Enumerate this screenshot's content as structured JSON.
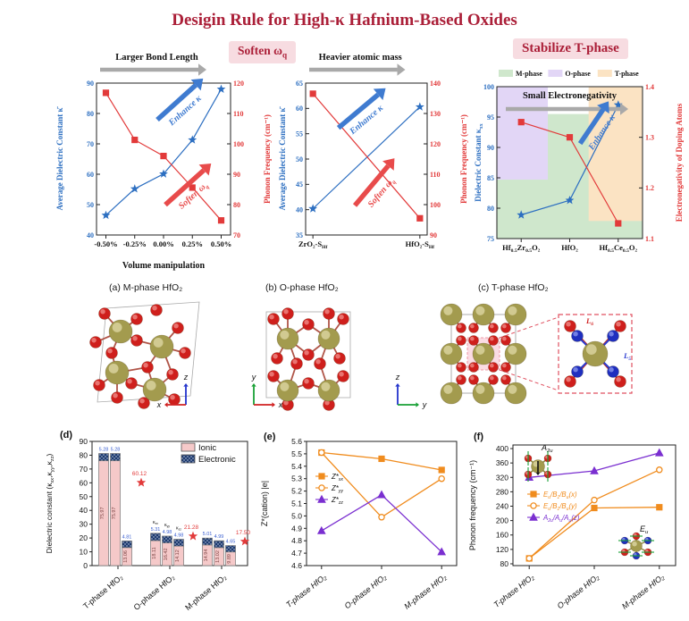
{
  "title": "Desigin Rule for High-κ Hafnium-Based Oxides",
  "badges": {
    "soften": "Soften ω{q}",
    "stabilize": "Stabilize T-phase"
  },
  "structures": {
    "a": {
      "caption": "(a) M-phase HfO₂",
      "axis_up": "z",
      "axis_side": "x"
    },
    "b": {
      "caption": "(b) O-phase HfO₂",
      "axis_up": "y",
      "axis_side": "x"
    },
    "c": {
      "caption": "(c) T-phase HfO₂",
      "axis_up": "z",
      "axis_side": "y",
      "label_l6": "L{6}",
      "label_l5": "L{5}"
    }
  },
  "colors": {
    "title": "#ab1f38",
    "badge_bg": "#f7dce1",
    "badge_text": "#ab1f38",
    "blue": "#2d6fc1",
    "red": "#e23a3a",
    "gray_arrow": "#a9a9a9",
    "m_phase": "#cfe7cc",
    "o_phase": "#e2d6f6",
    "t_phase": "#fbe3c3",
    "ionic": "#f5c9c9",
    "electronic": "#1d3a6e",
    "orange": "#f08c1e",
    "purple": "#7a2fd0",
    "olive": "#a39b4e",
    "oxygen": "#cf1f1c",
    "blue_atom": "#1f2fbf"
  },
  "chart_data": [
    {
      "id": "volume",
      "type": "dual_axis_line",
      "header": "Larger Bond Length",
      "xlabel": "Volume manipulation",
      "categories": [
        "-0.50%",
        "-0.25%",
        "0.00%",
        "0.25%",
        "0.50%"
      ],
      "left_axis": {
        "label": "Average Dielectric Constant κ̄",
        "min": 40,
        "max": 90,
        "step": 10
      },
      "right_axis": {
        "label": "Phonon Frequency (cm⁻¹)",
        "min": 70,
        "max": 120,
        "step": 10
      },
      "series": [
        {
          "name": "average-dielectric-constant",
          "axis": "left",
          "marker": "star",
          "values": [
            46.5,
            55.2,
            60.1,
            71.3,
            88.0
          ]
        },
        {
          "name": "phonon-frequency",
          "axis": "right",
          "marker": "square",
          "values": [
            116.8,
            101.3,
            96.0,
            85.6,
            74.8
          ]
        }
      ],
      "annotations": {
        "enhance": "Enhance κ",
        "soften": "Soften ω{q}"
      }
    },
    {
      "id": "mass",
      "type": "dual_axis_line",
      "header": "Heavier atomic mass",
      "categories": [
        "ZrO₂-S{Hf}",
        "HfO₂-S{Hf}"
      ],
      "left_axis": {
        "label": "Average Dielectric Constant κ̄",
        "min": 35,
        "max": 65,
        "step": 5
      },
      "right_axis": {
        "label": "Phonon Frequency (cm⁻¹)",
        "min": 90,
        "max": 140,
        "step": 10
      },
      "series": [
        {
          "name": "average-dielectric-constant",
          "axis": "left",
          "marker": "star",
          "values": [
            40.2,
            60.3
          ]
        },
        {
          "name": "phonon-frequency",
          "axis": "right",
          "marker": "square",
          "values": [
            136.5,
            95.5
          ]
        }
      ],
      "annotations": {
        "enhance": "Enhance κ",
        "soften": "Soften ω{q}"
      }
    },
    {
      "id": "phase",
      "type": "dual_axis_line",
      "header_inside": "Small Electronegativity",
      "legend": [
        {
          "label": "M-phase",
          "key": "m_phase"
        },
        {
          "label": "O-phase",
          "key": "o_phase"
        },
        {
          "label": "T-phase",
          "key": "t_phase"
        }
      ],
      "categories": [
        "Hf{0.5}Zr{0.5}O₂",
        "HfO₂",
        "Hf{0.5}Ce{0.5}O₂"
      ],
      "left_axis": {
        "label": "Dielectric Constant κ{xx}",
        "min": 75,
        "max": 100,
        "step": 5
      },
      "right_axis": {
        "label": "Electronegativity of Doping Atoms",
        "min": 1.1,
        "max": 1.4,
        "step": 0.1
      },
      "series": [
        {
          "name": "dielectric-constant",
          "axis": "left",
          "marker": "star",
          "values": [
            78.9,
            81.3,
            97.0
          ]
        },
        {
          "name": "electronegativity",
          "axis": "right",
          "marker": "square",
          "values": [
            1.33,
            1.3,
            1.13
          ]
        }
      ],
      "regions": [
        {
          "phase": "M",
          "x": [
            0,
            1
          ],
          "y": [
            75,
            95.5
          ]
        },
        {
          "phase": "O",
          "x": [
            0,
            0.35
          ],
          "y": [
            84.7,
            100
          ]
        },
        {
          "phase": "T",
          "x": [
            0.63,
            1
          ],
          "y": [
            77.9,
            100
          ]
        }
      ],
      "annotations": {
        "enhance": "Enhance κ"
      }
    },
    {
      "id": "dielectric_bars",
      "type": "stacked_bar",
      "panel": "(d)",
      "ylabel": "Dielectric constant (κ{xx},κ{yy},κ{zz})",
      "ylim": [
        0,
        90
      ],
      "ystep": 10,
      "legend": [
        "Ionic",
        "Electronic"
      ],
      "categories": [
        "T-phase HfO₂",
        "O-phase HfO₂",
        "M-phase HfO₂"
      ],
      "groups": [
        {
          "ionic": [
            75.97,
            75.97,
            13.06
          ],
          "electronic": [
            5.28,
            5.28,
            4.81
          ],
          "star": 60.12
        },
        {
          "ionic": [
            18.11,
            16.42,
            14.12
          ],
          "electronic": [
            5.31,
            4.98,
            4.98
          ],
          "star": 21.28,
          "bar_labels": [
            "κ{xx}",
            "κ{yy}",
            "κ{zz}"
          ]
        },
        {
          "ionic": [
            14.94,
            13.02,
            9.89
          ],
          "electronic": [
            5.01,
            4.99,
            4.65
          ],
          "star": 17.5
        }
      ]
    },
    {
      "id": "born_charges",
      "type": "line",
      "panel": "(e)",
      "ylabel": "Z*(cation) |e|",
      "ylim": [
        4.6,
        5.6
      ],
      "ystep": 0.1,
      "ydecimals": 1,
      "categories": [
        "T-phase HfO₂",
        "O-phase HfO₂",
        "M-phase HfO₂"
      ],
      "series": [
        {
          "label": "Z*{xx}",
          "marker": "square",
          "open": false,
          "key": "orange",
          "values": [
            5.51,
            5.46,
            5.37
          ]
        },
        {
          "label": "Z*{yy}",
          "marker": "circle",
          "open": true,
          "key": "orange",
          "values": [
            5.51,
            4.99,
            5.3
          ]
        },
        {
          "label": "Z*{zz}",
          "marker": "triangle",
          "open": false,
          "key": "purple",
          "values": [
            4.88,
            5.17,
            4.71
          ]
        }
      ]
    },
    {
      "id": "phonon_modes",
      "type": "line",
      "panel": "(f)",
      "ylabel": "Phonon frequency (cm⁻¹)",
      "ylim": [
        75,
        410
      ],
      "yticks": [
        80,
        120,
        160,
        200,
        240,
        280,
        320,
        360,
        400
      ],
      "ydecimals": 0,
      "categories": [
        "T-phase HfO₂",
        "O-phase HfO₂",
        "M-phase HfO₂"
      ],
      "series": [
        {
          "label": "E{u}/B{1}/B{u}(x)",
          "marker": "square",
          "open": false,
          "key": "orange",
          "values": [
            95,
            235,
            237
          ]
        },
        {
          "label": "E{u}/B{1}/B{u}(y)",
          "marker": "circle",
          "open": true,
          "key": "orange",
          "values": [
            95,
            257,
            341
          ]
        },
        {
          "label": "A{2u}/A{u}/A{u}(z)",
          "marker": "triangle",
          "open": false,
          "key": "purple",
          "values": [
            320,
            338,
            388
          ]
        }
      ],
      "insets": {
        "top_left": "A{2u}",
        "bottom_right": "E{u}"
      }
    }
  ]
}
